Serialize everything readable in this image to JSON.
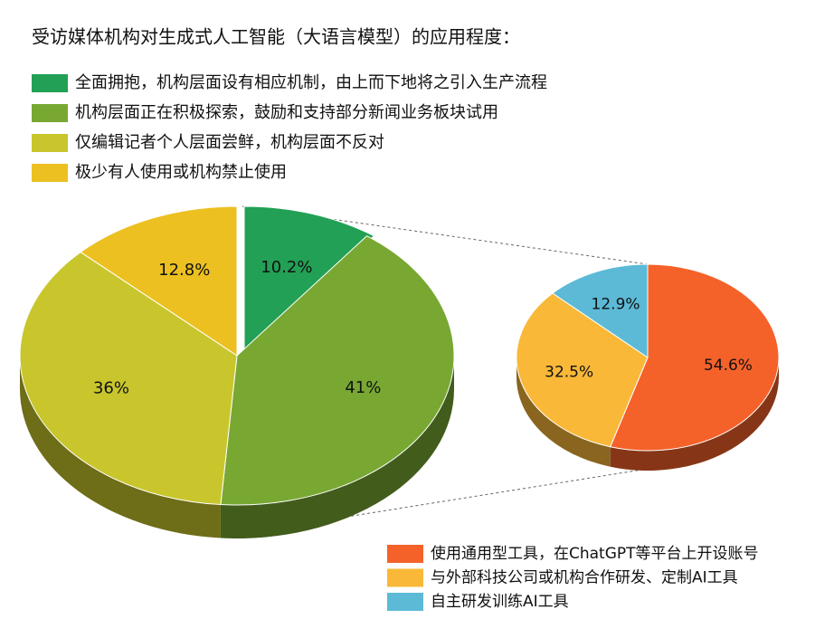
{
  "chart_data": [
    {
      "type": "pie",
      "title": "受访媒体机构对生成式人工智能（大语言模型）的应用程度：",
      "categories": [
        "全面拥抱，机构层面设有相应机制，由上而下地将之引入生产流程",
        "机构层面正在积极探索，鼓励和支持部分新闻业务板块试用",
        "仅编辑记者个人层面尝鲜，机构层面不反对",
        "极少有人使用或机构禁止使用"
      ],
      "values": [
        10.2,
        41,
        36,
        12.8
      ],
      "value_labels": [
        "10.2%",
        "41%",
        "36%",
        "12.8%"
      ],
      "colors": [
        "#22a055",
        "#78a832",
        "#c8c62c",
        "#ecc020"
      ],
      "legend": "top-left"
    },
    {
      "type": "pie",
      "categories": [
        "使用通用型工具，在ChatGPT等平台上开设账号",
        "与外部科技公司或机构合作研发、定制AI工具",
        "自主研发训练AI工具"
      ],
      "values": [
        54.6,
        32.5,
        12.9
      ],
      "value_labels": [
        "54.6%",
        "32.5%",
        "12.9%"
      ],
      "colors": [
        "#f4622a",
        "#f9b838",
        "#5cbad6"
      ],
      "legend": "bottom-right"
    }
  ]
}
